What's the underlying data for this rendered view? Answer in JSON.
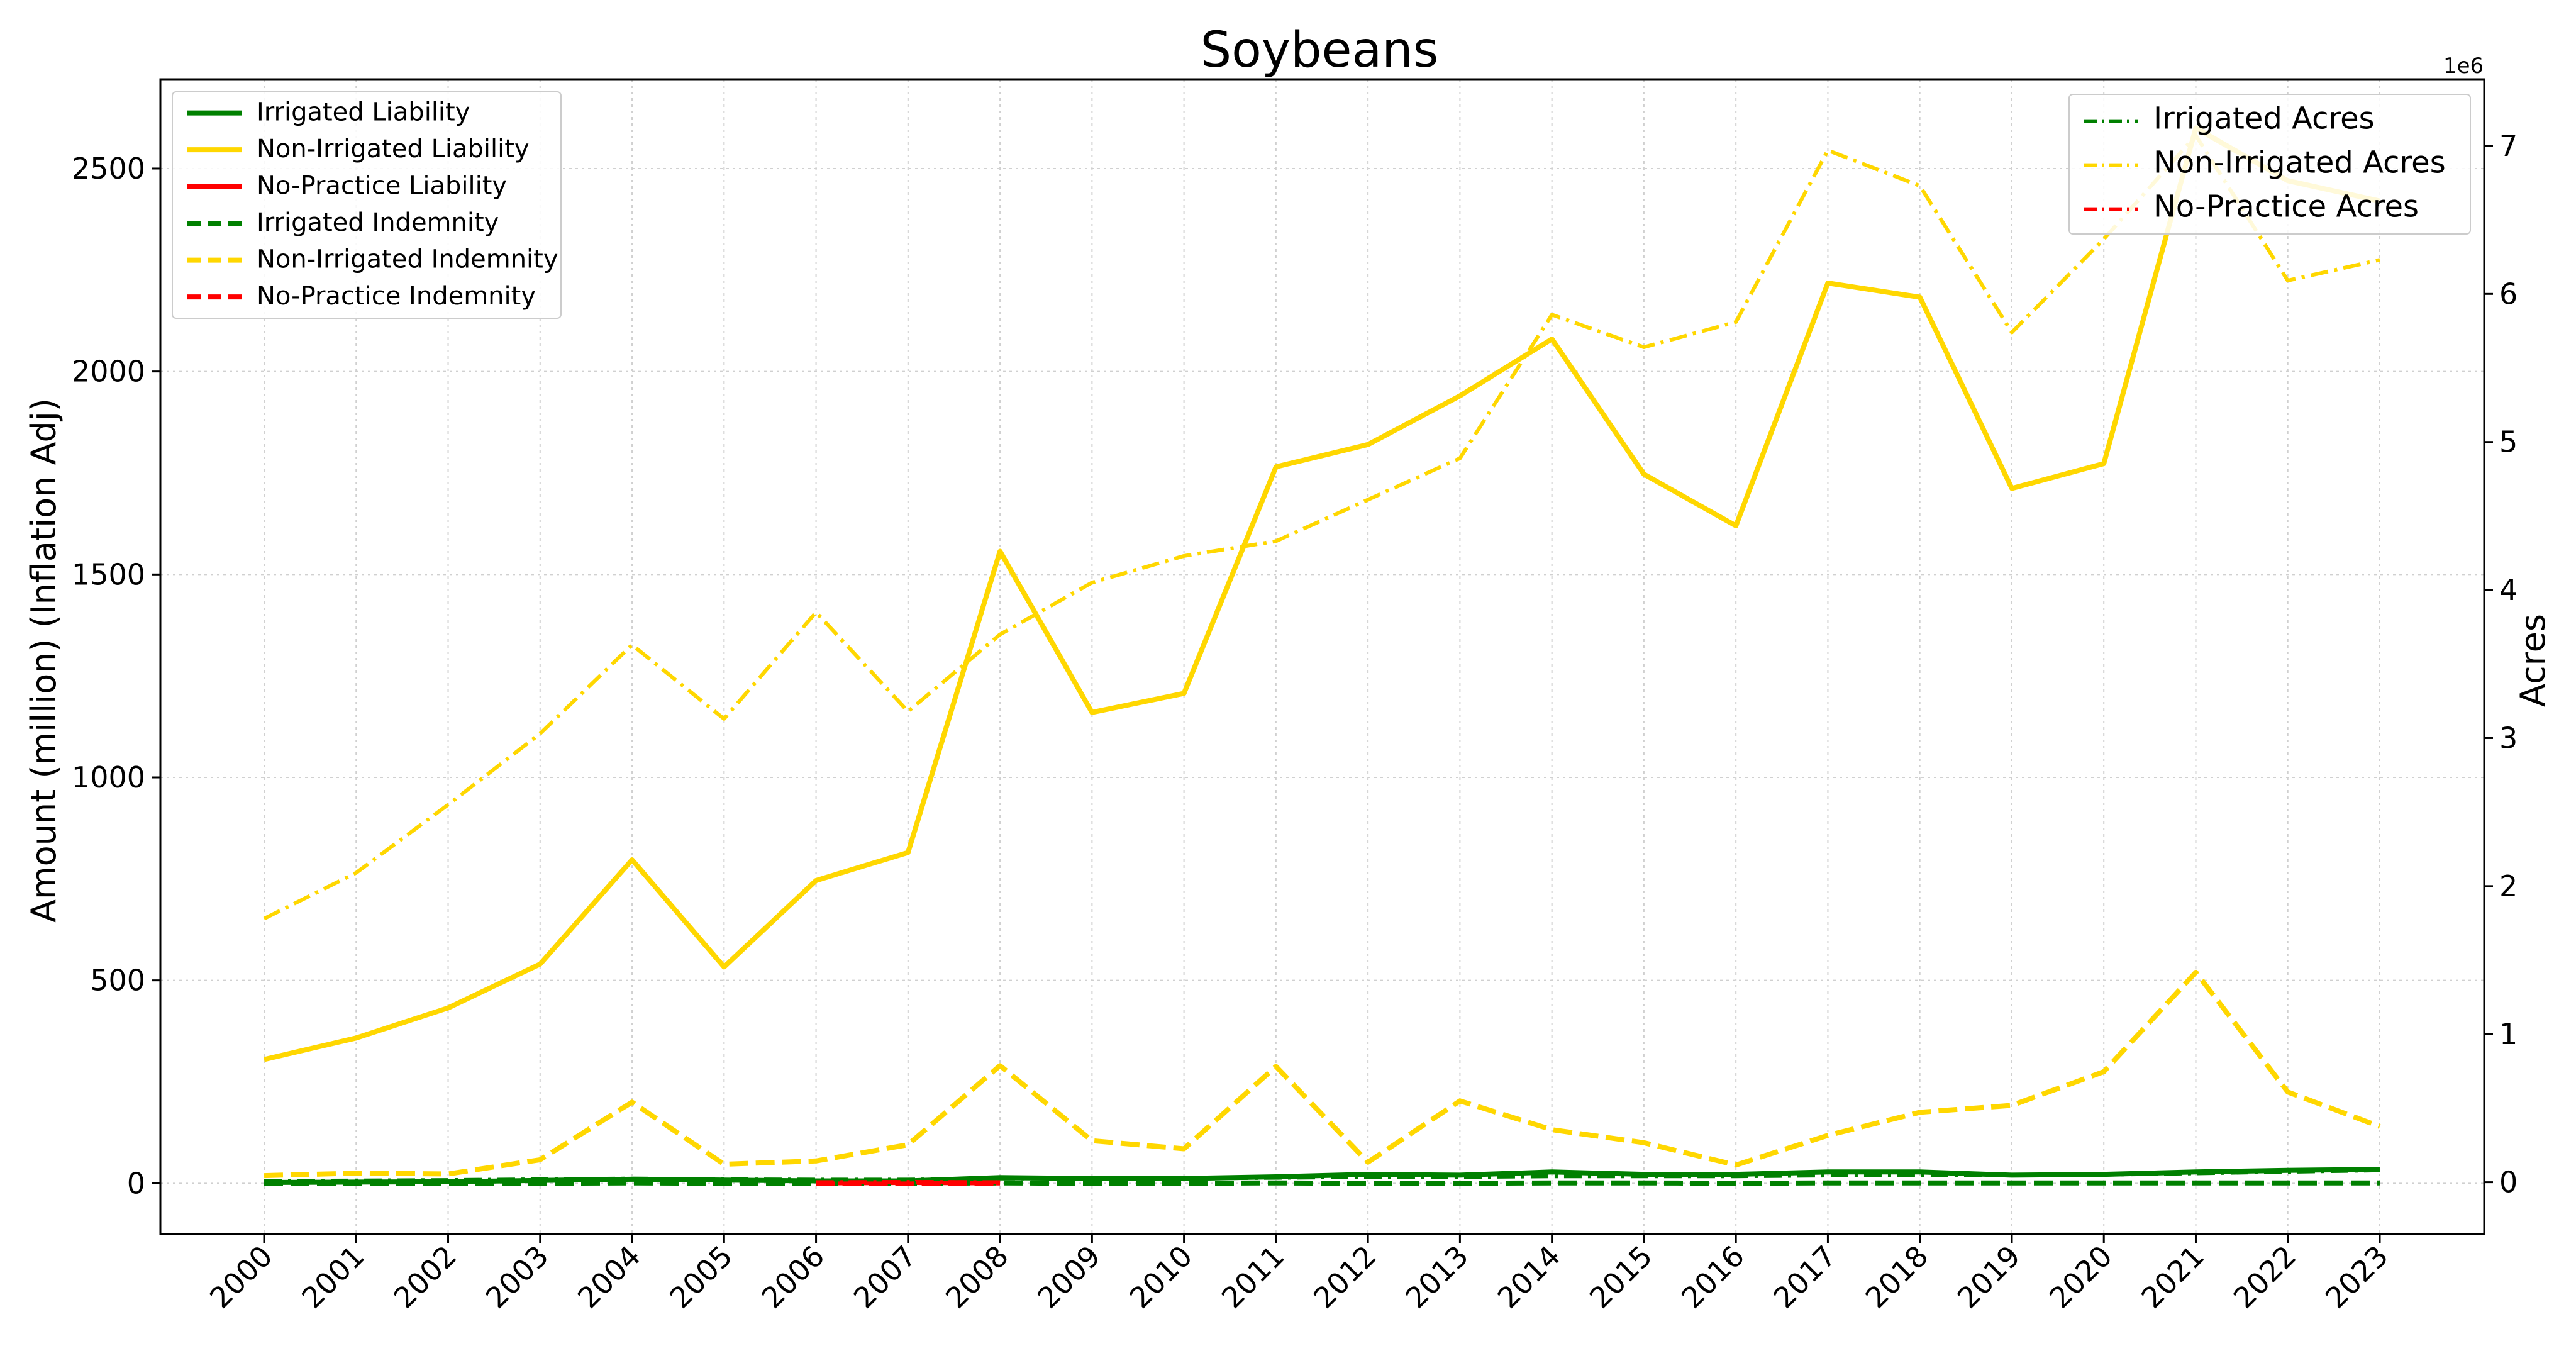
{
  "chart_data": {
    "type": "line",
    "title": "Soybeans",
    "ylabel": "Amount (million) (Inflation Adj)",
    "y2label": "Acres",
    "y2_offset_label": "1e6",
    "x": [
      "2000",
      "2001",
      "2002",
      "2003",
      "2004",
      "2005",
      "2006",
      "2007",
      "2008",
      "2009",
      "2010",
      "2011",
      "2012",
      "2013",
      "2014",
      "2015",
      "2016",
      "2017",
      "2018",
      "2019",
      "2020",
      "2021",
      "2022",
      "2023"
    ],
    "ylim": [
      -125,
      2720
    ],
    "yticks": [
      0,
      500,
      1000,
      1500,
      2000,
      2500
    ],
    "y2lim": [
      -0.35,
      7.45
    ],
    "y2ticks": [
      0,
      1,
      2,
      3,
      4,
      5,
      6,
      7
    ],
    "grid": true,
    "legend_left_position": "upper-left",
    "legend_right_position": "upper-right",
    "series": [
      {
        "name": "Irrigated Liability",
        "axis": "left",
        "style": "solid",
        "color": "#008000",
        "values": [
          2,
          3,
          4,
          7,
          10,
          8,
          6,
          6,
          14,
          12,
          12,
          16,
          22,
          20,
          28,
          22,
          22,
          28,
          28,
          20,
          22,
          28,
          32,
          34
        ]
      },
      {
        "name": "Non-Irrigated Liability",
        "axis": "left",
        "style": "solid",
        "color": "#FFD700",
        "values": [
          305,
          358,
          432,
          540,
          797,
          533,
          746,
          815,
          1557,
          1160,
          1207,
          1765,
          1820,
          1940,
          2080,
          1747,
          1620,
          2218,
          2183,
          1712,
          1773,
          2600,
          2470,
          2420
        ]
      },
      {
        "name": "No-Practice Liability",
        "axis": "left",
        "style": "solid",
        "color": "#FF0000",
        "values": [
          null,
          null,
          null,
          null,
          null,
          null,
          1,
          2,
          1,
          null,
          null,
          null,
          null,
          null,
          null,
          null,
          null,
          null,
          null,
          null,
          null,
          null,
          null,
          null
        ]
      },
      {
        "name": "Irrigated Indemnity",
        "axis": "left",
        "style": "dashed",
        "color": "#008000",
        "values": [
          0,
          0,
          0,
          0,
          1,
          0,
          0,
          0,
          1,
          0,
          0,
          1,
          0,
          0,
          1,
          1,
          0,
          1,
          1,
          1,
          1,
          1,
          1,
          1
        ]
      },
      {
        "name": "Non-Irrigated Indemnity",
        "axis": "left",
        "style": "dashed",
        "color": "#FFD700",
        "values": [
          19,
          25,
          23,
          58,
          200,
          47,
          55,
          95,
          290,
          105,
          85,
          288,
          52,
          203,
          132,
          100,
          45,
          118,
          175,
          192,
          275,
          520,
          225,
          140
        ]
      },
      {
        "name": "No-Practice Indemnity",
        "axis": "left",
        "style": "dashed",
        "color": "#FF0000",
        "values": [
          null,
          null,
          null,
          null,
          null,
          null,
          0,
          0,
          0,
          null,
          null,
          null,
          null,
          null,
          null,
          null,
          null,
          null,
          null,
          null,
          null,
          null,
          null,
          null
        ]
      },
      {
        "name": "Irrigated Acres",
        "axis": "right",
        "style": "dashdot",
        "color": "#008000",
        "values": [
          0.01,
          0.012,
          0.015,
          0.02,
          0.025,
          0.02,
          0.018,
          0.018,
          0.025,
          0.025,
          0.025,
          0.03,
          0.035,
          0.035,
          0.04,
          0.04,
          0.04,
          0.045,
          0.045,
          0.045,
          0.05,
          0.06,
          0.07,
          0.08
        ]
      },
      {
        "name": "Non-Irrigated Acres",
        "axis": "right",
        "style": "dashdot",
        "color": "#FFD700",
        "values": [
          1.78,
          2.09,
          2.55,
          3.03,
          3.63,
          3.13,
          3.85,
          3.18,
          3.7,
          4.05,
          4.23,
          4.33,
          4.61,
          4.89,
          5.86,
          5.64,
          5.81,
          6.97,
          6.73,
          5.74,
          6.37,
          7.07,
          6.09,
          6.23
        ]
      },
      {
        "name": "No-Practice Acres",
        "axis": "right",
        "style": "dashdot",
        "color": "#FF0000",
        "values": [
          null,
          null,
          null,
          null,
          null,
          null,
          0.001,
          0.002,
          0.001,
          null,
          null,
          null,
          null,
          null,
          null,
          null,
          null,
          null,
          null,
          null,
          null,
          null,
          null,
          null
        ]
      }
    ]
  }
}
